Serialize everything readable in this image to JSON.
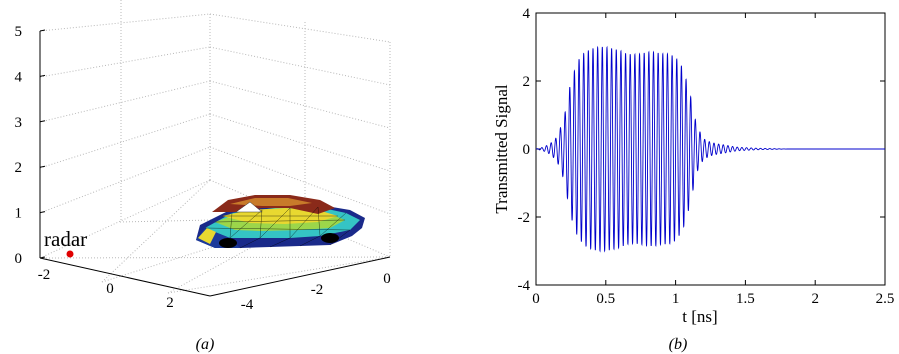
{
  "chart_data": [
    {
      "panel": "a",
      "type": "scatter",
      "caption": "(a)",
      "annotations": [
        {
          "text": "radar",
          "x": -1.5,
          "y": -1.5,
          "z": 0,
          "color": "#e00000"
        }
      ],
      "z_ticks": [
        "0",
        "1",
        "2",
        "3",
        "4",
        "5"
      ],
      "left_ticks": [
        "-2",
        "0",
        "2"
      ],
      "right_ticks": [
        "-4",
        "-2",
        "0"
      ],
      "zlim": [
        0,
        5
      ],
      "grid": true,
      "car_colors": [
        "#1a2a8a",
        "#2e8fd6",
        "#35c4c4",
        "#9cd64a",
        "#e8d830",
        "#c87a2a",
        "#8a2a1a"
      ]
    },
    {
      "panel": "b",
      "type": "line",
      "caption": "(b)",
      "xlabel": "t [ns]",
      "ylabel": "Transmitted Signal",
      "xlim": [
        0,
        2.5
      ],
      "ylim": [
        -4,
        4
      ],
      "x_ticks": [
        "0",
        "0.5",
        "1",
        "1.5",
        "2",
        "2.5"
      ],
      "y_ticks": [
        "-4",
        "-2",
        "0",
        "2",
        "4"
      ],
      "color": "#0000cc",
      "envelope": [
        [
          0.0,
          0.0
        ],
        [
          0.05,
          0.05
        ],
        [
          0.1,
          0.15
        ],
        [
          0.15,
          0.35
        ],
        [
          0.2,
          0.9
        ],
        [
          0.25,
          2.0
        ],
        [
          0.3,
          2.6
        ],
        [
          0.35,
          2.85
        ],
        [
          0.4,
          2.95
        ],
        [
          0.45,
          3.0
        ],
        [
          0.5,
          3.0
        ],
        [
          0.55,
          2.95
        ],
        [
          0.6,
          2.9
        ],
        [
          0.65,
          2.8
        ],
        [
          0.7,
          2.78
        ],
        [
          0.75,
          2.8
        ],
        [
          0.8,
          2.85
        ],
        [
          0.85,
          2.85
        ],
        [
          0.9,
          2.8
        ],
        [
          0.95,
          2.8
        ],
        [
          1.0,
          2.7
        ],
        [
          1.05,
          2.4
        ],
        [
          1.1,
          1.7
        ],
        [
          1.15,
          0.7
        ],
        [
          1.2,
          0.3
        ],
        [
          1.25,
          0.2
        ],
        [
          1.3,
          0.15
        ],
        [
          1.35,
          0.12
        ],
        [
          1.4,
          0.08
        ],
        [
          1.45,
          0.05
        ],
        [
          1.5,
          0.04
        ],
        [
          1.55,
          0.03
        ],
        [
          1.6,
          0.02
        ],
        [
          1.7,
          0.01
        ],
        [
          1.8,
          0.0
        ],
        [
          2.5,
          0.0
        ]
      ],
      "carrier_freq_ghz": 30
    }
  ]
}
